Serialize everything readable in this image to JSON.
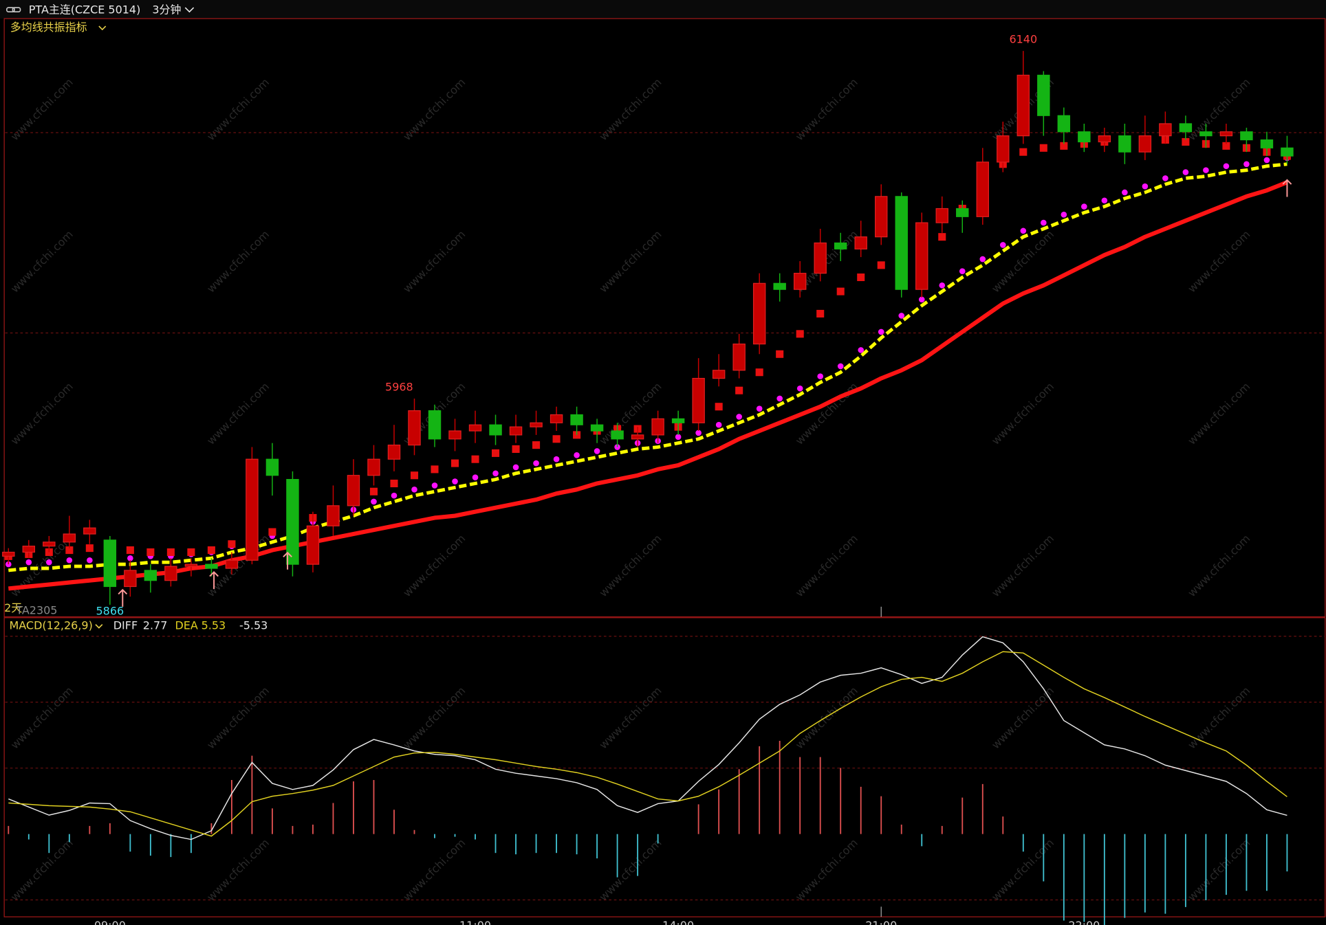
{
  "header": {
    "symbol": "PTA主连(CZCE 5014)",
    "period": "3分钟"
  },
  "watermark": "www.cfchi.com",
  "chart_data": [
    {
      "type": "candlestick",
      "title": "多均线共振指标",
      "contract": "TA2305",
      "annotation": "2天",
      "categories": [
        null,
        null,
        null,
        null,
        null,
        "09:00",
        null,
        null,
        null,
        null,
        null,
        null,
        null,
        null,
        null,
        null,
        null,
        null,
        null,
        null,
        null,
        null,
        null,
        "11:00",
        null,
        null,
        null,
        null,
        null,
        null,
        null,
        null,
        null,
        "14:00",
        null,
        null,
        null,
        null,
        null,
        null,
        null,
        null,
        null,
        "21:00",
        null,
        null,
        null,
        null,
        null,
        null,
        null,
        null,
        null,
        "22:00",
        null,
        null,
        null,
        null,
        null,
        null,
        null,
        null,
        null,
        null
      ],
      "open": [
        5890,
        5892,
        5895,
        5897,
        5901,
        5898,
        5875,
        5883,
        5878,
        5885,
        5886,
        5884,
        5888,
        5938,
        5928,
        5886,
        5905,
        5915,
        5930,
        5938,
        5945,
        5962,
        5948,
        5952,
        5955,
        5950,
        5954,
        5956,
        5960,
        5955,
        5952,
        5948,
        5950,
        5958,
        5956,
        5978,
        5982,
        5995,
        6025,
        6022,
        6030,
        6045,
        6042,
        6048,
        6068,
        6022,
        6055,
        6062,
        6058,
        6085,
        6098,
        6128,
        6108,
        6100,
        6095,
        6098,
        6090,
        6098,
        6104,
        6100,
        6098,
        6100,
        6096,
        6092
      ],
      "high": [
        5894,
        5898,
        5900,
        5910,
        5908,
        5900,
        5888,
        5886,
        5889,
        5889,
        5889,
        5892,
        5944,
        5946,
        5932,
        5912,
        5925,
        5938,
        5945,
        5955,
        5968,
        5965,
        5958,
        5962,
        5960,
        5960,
        5962,
        5964,
        5964,
        5958,
        5956,
        5954,
        5962,
        5962,
        5988,
        5990,
        6000,
        6030,
        6030,
        6036,
        6052,
        6050,
        6056,
        6074,
        6070,
        6060,
        6068,
        6066,
        6092,
        6105,
        6140,
        6130,
        6112,
        6104,
        6102,
        6104,
        6108,
        6110,
        6108,
        6104,
        6104,
        6102,
        6100,
        6098
      ],
      "low": [
        5886,
        5889,
        5892,
        5894,
        5896,
        5866,
        5870,
        5872,
        5875,
        5880,
        5880,
        5881,
        5886,
        5920,
        5880,
        5882,
        5900,
        5910,
        5925,
        5932,
        5940,
        5944,
        5942,
        5946,
        5945,
        5946,
        5950,
        5952,
        5950,
        5946,
        5944,
        5944,
        5946,
        5950,
        5952,
        5974,
        5978,
        5990,
        6016,
        6018,
        6026,
        6036,
        6038,
        6044,
        6018,
        6018,
        6050,
        6050,
        6054,
        6080,
        6094,
        6098,
        6094,
        6090,
        6090,
        6084,
        6086,
        6094,
        6096,
        6092,
        6094,
        6090,
        6088,
        6084
      ],
      "close": [
        5892,
        5895,
        5897,
        5901,
        5904,
        5875,
        5883,
        5878,
        5885,
        5886,
        5884,
        5888,
        5938,
        5930,
        5886,
        5905,
        5915,
        5930,
        5938,
        5945,
        5962,
        5948,
        5952,
        5955,
        5950,
        5954,
        5956,
        5960,
        5955,
        5952,
        5948,
        5950,
        5958,
        5956,
        5978,
        5982,
        5995,
        6025,
        6022,
        6030,
        6045,
        6042,
        6048,
        6068,
        6022,
        6055,
        6062,
        6058,
        6085,
        6098,
        6128,
        6108,
        6100,
        6095,
        6098,
        6090,
        6098,
        6104,
        6100,
        6098,
        6100,
        6096,
        6092,
        6088
      ],
      "up_color": "#c80000",
      "down_color": "#14b414",
      "ylim": [
        5860,
        6156
      ],
      "series": [
        {
          "style": "line",
          "color": "#ff1414",
          "values": [
            5874,
            5875,
            5876,
            5877,
            5878,
            5879,
            5880,
            5881,
            5882,
            5884,
            5885,
            5888,
            5890,
            5893,
            5895,
            5897,
            5899,
            5901,
            5903,
            5905,
            5907,
            5909,
            5910,
            5912,
            5914,
            5916,
            5918,
            5921,
            5923,
            5926,
            5928,
            5930,
            5933,
            5935,
            5939,
            5943,
            5948,
            5952,
            5956,
            5960,
            5964,
            5969,
            5973,
            5978,
            5982,
            5987,
            5994,
            6001,
            6008,
            6015,
            6020,
            6024,
            6029,
            6034,
            6039,
            6043,
            6048,
            6052,
            6056,
            6060,
            6064,
            6068,
            6071,
            6075
          ]
        },
        {
          "style": "dash",
          "color": "#ffff00",
          "values": [
            5883,
            5884,
            5884,
            5885,
            5885,
            5886,
            5886,
            5887,
            5887,
            5888,
            5889,
            5892,
            5894,
            5897,
            5900,
            5904,
            5907,
            5910,
            5914,
            5917,
            5920,
            5922,
            5924,
            5926,
            5928,
            5931,
            5933,
            5935,
            5937,
            5939,
            5941,
            5943,
            5944,
            5946,
            5948,
            5952,
            5956,
            5960,
            5965,
            5970,
            5976,
            5981,
            5989,
            5998,
            6006,
            6014,
            6021,
            6028,
            6034,
            6041,
            6048,
            6052,
            6056,
            6060,
            6063,
            6067,
            6070,
            6074,
            6077,
            6078,
            6080,
            6081,
            6083,
            6084
          ]
        },
        {
          "style": "dots",
          "color": "#ff10ff",
          "values": [
            5886,
            5887,
            5887,
            5888,
            5888,
            5889,
            5889,
            5890,
            5890,
            5891,
            5892,
            5895,
            5897,
            5900,
            5903,
            5907,
            5910,
            5913,
            5917,
            5920,
            5923,
            5925,
            5927,
            5929,
            5931,
            5934,
            5936,
            5938,
            5940,
            5942,
            5944,
            5946,
            5947,
            5949,
            5951,
            5955,
            5959,
            5963,
            5968,
            5973,
            5979,
            5984,
            5992,
            6001,
            6009,
            6017,
            6024,
            6031,
            6037,
            6044,
            6051,
            6055,
            6059,
            6063,
            6066,
            6070,
            6073,
            6077,
            6080,
            6081,
            6083,
            6084,
            6086,
            6087
          ]
        },
        {
          "style": "squares",
          "color": "#e81010",
          "values": [
            5890,
            5891,
            5892,
            5893,
            5894,
            5894,
            5893,
            5892,
            5892,
            5892,
            5893,
            5896,
            5899,
            5902,
            5905,
            5909,
            5913,
            5918,
            5922,
            5926,
            5930,
            5933,
            5936,
            5938,
            5941,
            5943,
            5945,
            5948,
            5950,
            5952,
            5953,
            5953,
            5954,
            5954,
            5959,
            5964,
            5972,
            5981,
            5990,
            6000,
            6010,
            6021,
            6028,
            6034,
            6040,
            6044,
            6048,
            6062,
            6077,
            6084,
            6090,
            6092,
            6093,
            6094,
            6095,
            6096,
            6096,
            6096,
            6095,
            6094,
            6093,
            6092,
            6090,
            6088
          ]
        }
      ]
    },
    {
      "type": "macd",
      "title": "MACD(12,26,9)",
      "ylim": [
        -12.25,
        31.9
      ],
      "series": [
        {
          "name": "DIFF",
          "color": "#e6e6e6",
          "values": [
            5.2,
            4,
            2.8,
            3.5,
            4.6,
            4.5,
            2,
            0.8,
            -0.2,
            -0.8,
            0.5,
            6,
            10.6,
            7.5,
            6.6,
            7.2,
            9.5,
            12.5,
            14,
            13.2,
            12.3,
            11.8,
            11.6,
            11,
            9.6,
            9,
            8.6,
            8.2,
            7.6,
            6.6,
            4.2,
            3.2,
            4.5,
            4.9,
            7.8,
            10.3,
            13.5,
            17,
            19.2,
            20.6,
            22.5,
            23.5,
            23.8,
            24.6,
            23.6,
            22.3,
            23.2,
            26.5,
            29.2,
            28.3,
            25.5,
            21.5,
            16.8,
            15,
            13.2,
            12.6,
            11.6,
            10.2,
            9.4,
            8.6,
            7.8,
            6,
            3.6,
            2.77
          ]
        },
        {
          "name": "DEA",
          "color": "#e0d020",
          "values": [
            4.6,
            4.4,
            4.2,
            4.1,
            4,
            3.7,
            3.3,
            2.4,
            1.5,
            0.6,
            -0.3,
            2,
            4.8,
            5.6,
            6,
            6.5,
            7.2,
            8.6,
            10,
            11.4,
            12,
            12.1,
            11.8,
            11.4,
            11,
            10.5,
            10,
            9.6,
            9.1,
            8.4,
            7.4,
            6.3,
            5.2,
            4.9,
            5.6,
            7,
            8.7,
            10.5,
            12.3,
            14.9,
            16.8,
            18.6,
            20.3,
            21.8,
            22.9,
            23.2,
            22.6,
            23.8,
            25.5,
            27,
            26.8,
            25,
            23.2,
            21.5,
            20.2,
            18.8,
            17.4,
            16.1,
            14.8,
            13.5,
            12.3,
            10.2,
            7.8,
            5.53
          ]
        }
      ],
      "histogram": {
        "up_color": "#e05050",
        "down_color": "#40c0d0",
        "values": [
          1.2,
          -0.8,
          -2.8,
          -1.2,
          1.2,
          1.6,
          -2.6,
          -3.2,
          -3.4,
          -2.8,
          1.6,
          8,
          11.6,
          3.8,
          1.2,
          1.4,
          4.6,
          7.8,
          8,
          3.6,
          0.6,
          -0.6,
          -0.4,
          -0.8,
          -2.8,
          -3,
          -2.8,
          -2.8,
          -3,
          -3.6,
          -6.4,
          -6.2,
          -1.4,
          0,
          4.4,
          6.6,
          9.6,
          13,
          13.8,
          11.4,
          11.4,
          9.8,
          7,
          5.6,
          1.4,
          -1.8,
          1.2,
          5.4,
          7.4,
          2.6,
          -2.6,
          -7,
          -12.8,
          -13,
          -14,
          -12.4,
          -11.6,
          -11.8,
          -10.8,
          -9.8,
          -9,
          -8.4,
          -8.4,
          -5.53
        ]
      }
    }
  ]
}
